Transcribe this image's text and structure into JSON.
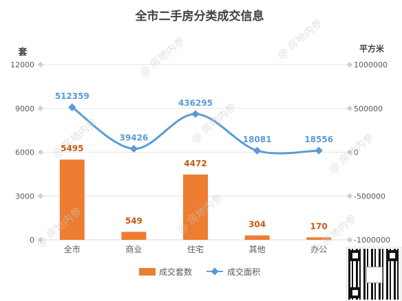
{
  "chart_data": {
    "type": "bar+line",
    "title": "全市二手房分类成交信息",
    "categories": [
      "全市",
      "商业",
      "住宅",
      "其他",
      "办公"
    ],
    "left_axis": {
      "label": "套",
      "ylim": [
        0,
        12000
      ],
      "ticks": [
        0,
        3000,
        6000,
        9000,
        12000
      ]
    },
    "right_axis": {
      "label": "平方米",
      "ylim": [
        -1000000,
        1000000
      ],
      "ticks": [
        -1000000,
        -500000,
        0,
        500000,
        1000000
      ]
    },
    "series": [
      {
        "name": "成交套数",
        "type": "bar",
        "axis": "left",
        "color": "#ED7D31",
        "values": [
          5495,
          549,
          4472,
          304,
          170
        ]
      },
      {
        "name": "成交面积",
        "type": "line",
        "axis": "right",
        "color": "#5B9BD5",
        "values": [
          512359,
          39426,
          436295,
          18081,
          18556
        ]
      }
    ],
    "legend_position": "bottom",
    "grid": true
  },
  "watermark": {
    "text": "房地内参",
    "icon": "at-icon"
  },
  "qr_code": {
    "icon": "qr-code-icon"
  }
}
